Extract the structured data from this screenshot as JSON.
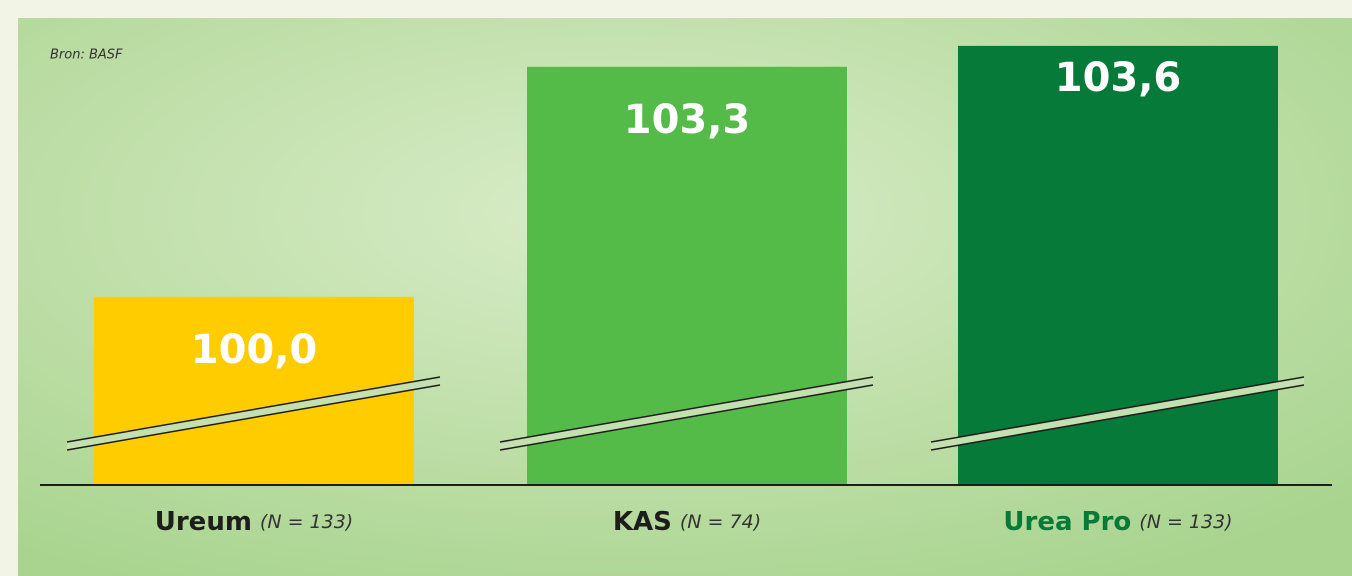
{
  "chart_data": {
    "type": "bar",
    "source": "Bron: BASF",
    "categories": [
      "Ureum",
      "KAS",
      "Urea Pro"
    ],
    "notes": [
      "(N = 133)",
      "(N = 74)",
      "(N = 133)"
    ],
    "values": [
      100.0,
      103.3,
      103.6
    ],
    "value_labels": [
      "100,0",
      "103,3",
      "103,6"
    ],
    "colors": [
      "#ffcc00",
      "#55bb48",
      "#067a38"
    ],
    "category_colors": [
      "#1d1d1b",
      "#1d1d1b",
      "#067a38"
    ],
    "ylim": [
      97.3,
      104
    ]
  }
}
